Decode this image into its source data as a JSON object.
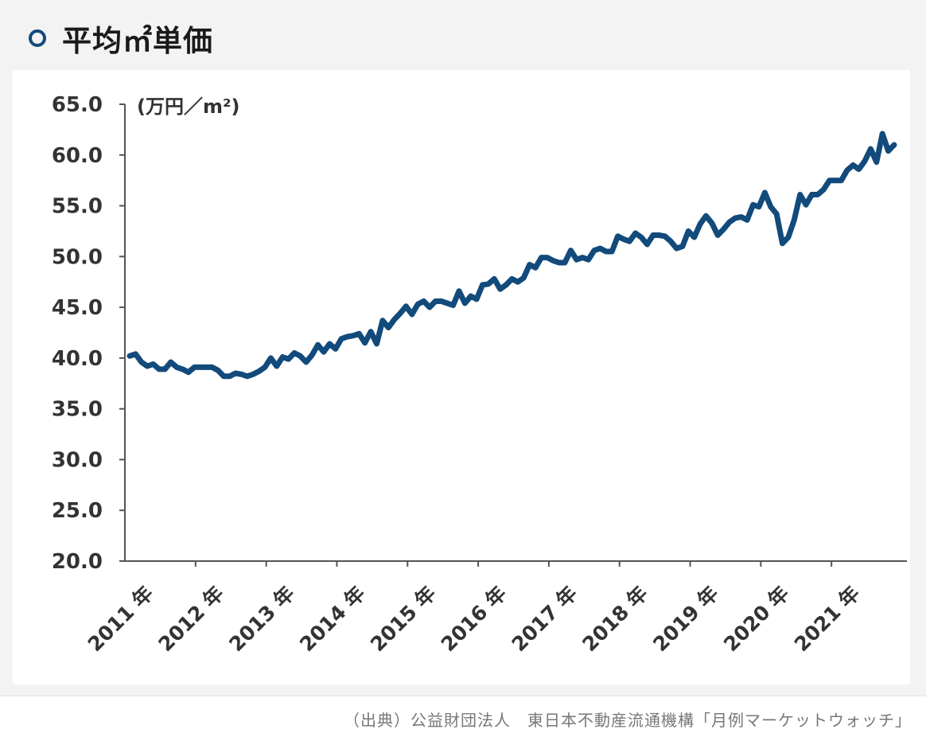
{
  "header": {
    "title": "平均㎡単価"
  },
  "footer": {
    "source": "（出典）公益財団法人　東日本不動産流通機構「月例マーケットウォッチ」"
  },
  "colors": {
    "line": "#124a7b",
    "axis": "#555555",
    "tick_text": "#333333"
  },
  "chart_data": {
    "type": "line",
    "unit_label": "(万円／m²)",
    "ylim": [
      20,
      65
    ],
    "y_ticks": [
      "65.0",
      "60.0",
      "55.0",
      "50.0",
      "45.0",
      "40.0",
      "35.0",
      "30.0",
      "25.0",
      "20.0"
    ],
    "x_tick_labels": [
      "2011 年",
      "2012 年",
      "2013 年",
      "2014 年",
      "2015 年",
      "2016 年",
      "2017 年",
      "2018 年",
      "2019 年",
      "2020 年",
      "2021 年"
    ],
    "grid": false,
    "series": [
      {
        "values": [
          40.2,
          40.4,
          39.6,
          39.2,
          39.4,
          38.9,
          38.9,
          39.6,
          39.1,
          38.9,
          38.6,
          39.1,
          39.1,
          39.1,
          39.1,
          38.8,
          38.2,
          38.2,
          38.5,
          38.4,
          38.2,
          38.4,
          38.7,
          39.1,
          40.0,
          39.2,
          40.1,
          39.9,
          40.5,
          40.2,
          39.6,
          40.3,
          41.3,
          40.6,
          41.4,
          40.9,
          41.9,
          42.1,
          42.2,
          42.4,
          41.5,
          42.6,
          41.4,
          43.7,
          43.0,
          43.8,
          44.4,
          45.1,
          44.3,
          45.3,
          45.6,
          45.0,
          45.6,
          45.6,
          45.4,
          45.2,
          46.6,
          45.4,
          46.1,
          45.8,
          47.2,
          47.3,
          47.8,
          46.8,
          47.2,
          47.8,
          47.5,
          47.9,
          49.2,
          48.9,
          49.9,
          49.9,
          49.6,
          49.4,
          49.4,
          50.6,
          49.7,
          49.9,
          49.7,
          50.6,
          50.8,
          50.5,
          50.5,
          52.0,
          51.7,
          51.5,
          52.3,
          51.9,
          51.2,
          52.1,
          52.1,
          52.0,
          51.5,
          50.8,
          51.0,
          52.5,
          51.9,
          53.2,
          54.0,
          53.3,
          52.1,
          52.7,
          53.4,
          53.8,
          53.9,
          53.6,
          55.1,
          54.9,
          56.3,
          54.9,
          54.2,
          51.3,
          51.9,
          53.6,
          56.1,
          55.1,
          56.1,
          56.1,
          56.6,
          57.5,
          57.5,
          57.5,
          58.5,
          59.0,
          58.6,
          59.4,
          60.6,
          59.3,
          62.1,
          60.4,
          61.0
        ]
      }
    ]
  }
}
